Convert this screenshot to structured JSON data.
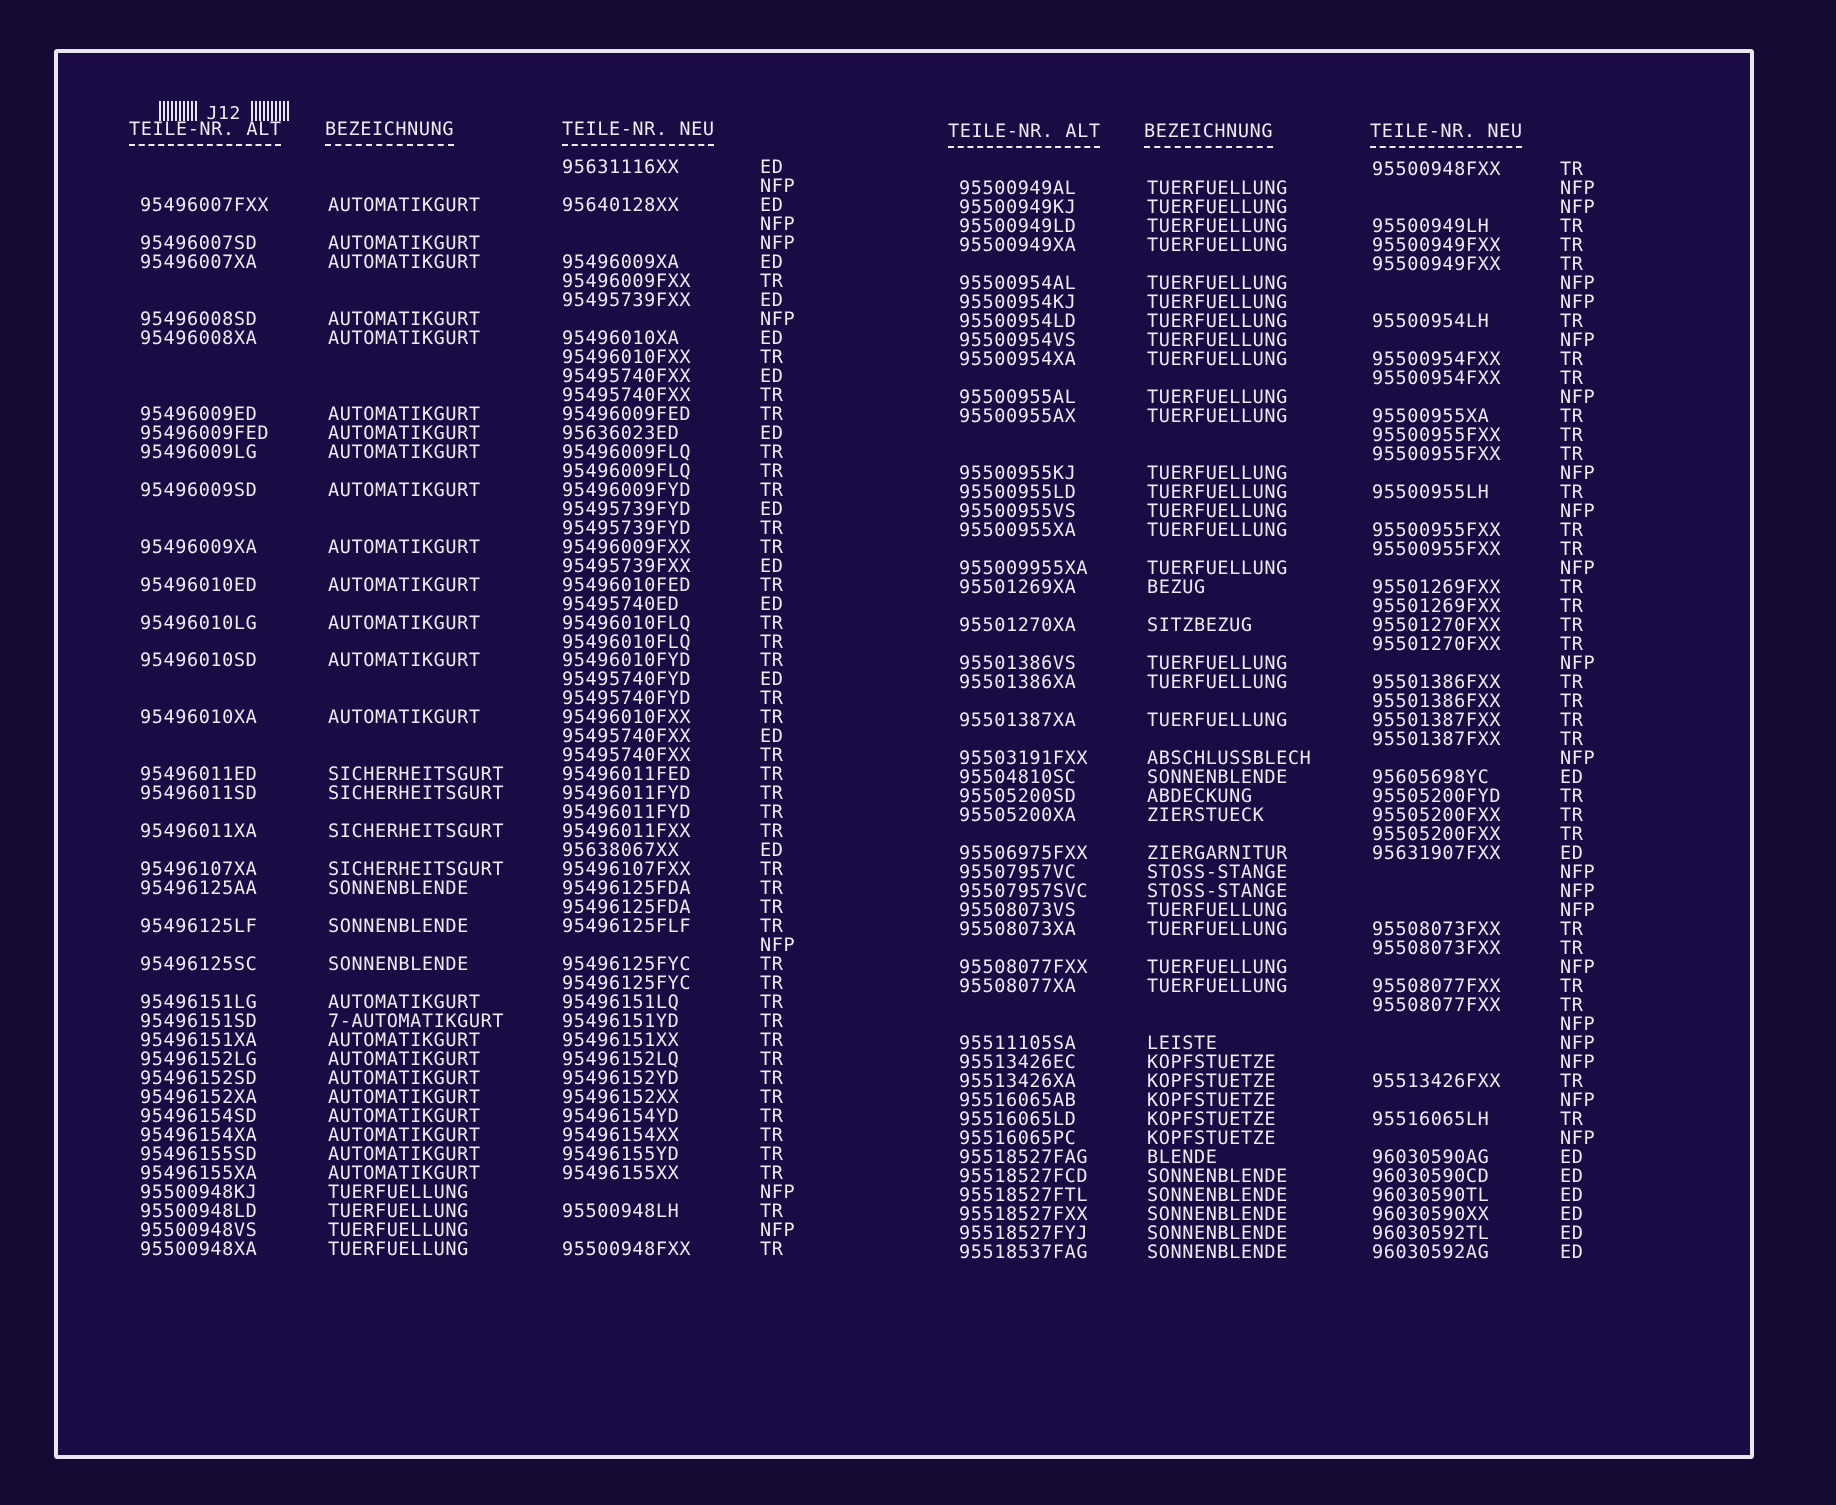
{
  "page_label": "J12",
  "headers": {
    "left": [
      "TEILE-NR. ALT",
      "BEZEICHNUNG",
      "TEILE-NR. NEU"
    ],
    "right": [
      "TEILE-NR. ALT",
      "BEZEICHNUNG",
      "TEILE-NR. NEU"
    ]
  },
  "rows_left": [
    [
      "",
      "",
      "95631116XX",
      "ED"
    ],
    [
      "",
      "",
      "",
      "NFP"
    ],
    [
      "95496007FXX",
      "AUTOMATIKGURT",
      "95640128XX",
      "ED"
    ],
    [
      "",
      "",
      "",
      "NFP"
    ],
    [
      "95496007SD",
      "AUTOMATIKGURT",
      "",
      "NFP"
    ],
    [
      "95496007XA",
      "AUTOMATIKGURT",
      "95496009XA",
      "ED"
    ],
    [
      "",
      "",
      "95496009FXX",
      "TR"
    ],
    [
      "",
      "",
      "95495739FXX",
      "ED"
    ],
    [
      "95496008SD",
      "AUTOMATIKGURT",
      "",
      "NFP"
    ],
    [
      "95496008XA",
      "AUTOMATIKGURT",
      "95496010XA",
      "ED"
    ],
    [
      "",
      "",
      "95496010FXX",
      "TR"
    ],
    [
      "",
      "",
      "95495740FXX",
      "ED"
    ],
    [
      "",
      "",
      "95495740FXX",
      "TR"
    ],
    [
      "95496009ED",
      "AUTOMATIKGURT",
      "95496009FED",
      "TR"
    ],
    [
      "95496009FED",
      "AUTOMATIKGURT",
      "95636023ED",
      "ED"
    ],
    [
      "95496009LG",
      "AUTOMATIKGURT",
      "95496009FLQ",
      "TR"
    ],
    [
      "",
      "",
      "95496009FLQ",
      "TR"
    ],
    [
      "95496009SD",
      "AUTOMATIKGURT",
      "95496009FYD",
      "TR"
    ],
    [
      "",
      "",
      "95495739FYD",
      "ED"
    ],
    [
      "",
      "",
      "95495739FYD",
      "TR"
    ],
    [
      "95496009XA",
      "AUTOMATIKGURT",
      "95496009FXX",
      "TR"
    ],
    [
      "",
      "",
      "95495739FXX",
      "ED"
    ],
    [
      "95496010ED",
      "AUTOMATIKGURT",
      "95496010FED",
      "TR"
    ],
    [
      "",
      "",
      "95495740ED",
      "ED"
    ],
    [
      "95496010LG",
      "AUTOMATIKGURT",
      "95496010FLQ",
      "TR"
    ],
    [
      "",
      "",
      "95496010FLQ",
      "TR"
    ],
    [
      "95496010SD",
      "AUTOMATIKGURT",
      "95496010FYD",
      "TR"
    ],
    [
      "",
      "",
      "95495740FYD",
      "ED"
    ],
    [
      "",
      "",
      "95495740FYD",
      "TR"
    ],
    [
      "95496010XA",
      "AUTOMATIKGURT",
      "95496010FXX",
      "TR"
    ],
    [
      "",
      "",
      "95495740FXX",
      "ED"
    ],
    [
      "",
      "",
      "95495740FXX",
      "TR"
    ],
    [
      "95496011ED",
      "SICHERHEITSGURT",
      "95496011FED",
      "TR"
    ],
    [
      "95496011SD",
      "SICHERHEITSGURT",
      "95496011FYD",
      "TR"
    ],
    [
      "",
      "",
      "95496011FYD",
      "TR"
    ],
    [
      "95496011XA",
      "SICHERHEITSGURT",
      "95496011FXX",
      "TR"
    ],
    [
      "",
      "",
      "95638067XX",
      "ED"
    ],
    [
      "95496107XA",
      "SICHERHEITSGURT",
      "95496107FXX",
      "TR"
    ],
    [
      "95496125AA",
      "SONNENBLENDE",
      "95496125FDA",
      "TR"
    ],
    [
      "",
      "",
      "95496125FDA",
      "TR"
    ],
    [
      "95496125LF",
      "SONNENBLENDE",
      "95496125FLF",
      "TR"
    ],
    [
      "",
      "",
      "",
      "NFP"
    ],
    [
      "95496125SC",
      "SONNENBLENDE",
      "95496125FYC",
      "TR"
    ],
    [
      "",
      "",
      "95496125FYC",
      "TR"
    ],
    [
      "95496151LG",
      "AUTOMATIKGURT",
      "95496151LQ",
      "TR"
    ],
    [
      "95496151SD",
      "7-AUTOMATIKGURT",
      "95496151YD",
      "TR"
    ],
    [
      "95496151XA",
      "AUTOMATIKGURT",
      "95496151XX",
      "TR"
    ],
    [
      "95496152LG",
      "AUTOMATIKGURT",
      "95496152LQ",
      "TR"
    ],
    [
      "95496152SD",
      "AUTOMATIKGURT",
      "95496152YD",
      "TR"
    ],
    [
      "95496152XA",
      "AUTOMATIKGURT",
      "95496152XX",
      "TR"
    ],
    [
      "95496154SD",
      "AUTOMATIKGURT",
      "95496154YD",
      "TR"
    ],
    [
      "95496154XA",
      "AUTOMATIKGURT",
      "95496154XX",
      "TR"
    ],
    [
      "95496155SD",
      "AUTOMATIKGURT",
      "95496155YD",
      "TR"
    ],
    [
      "95496155XA",
      "AUTOMATIKGURT",
      "95496155XX",
      "TR"
    ],
    [
      "95500948KJ",
      "TUERFUELLUNG",
      "",
      "NFP"
    ],
    [
      "95500948LD",
      "TUERFUELLUNG",
      "95500948LH",
      "TR"
    ],
    [
      "95500948VS",
      "TUERFUELLUNG",
      "",
      "NFP"
    ],
    [
      "95500948XA",
      "TUERFUELLUNG",
      "95500948FXX",
      "TR"
    ]
  ],
  "rows_right": [
    [
      "",
      "",
      "95500948FXX",
      "TR"
    ],
    [
      "95500949AL",
      "TUERFUELLUNG",
      "",
      "NFP"
    ],
    [
      "95500949KJ",
      "TUERFUELLUNG",
      "",
      "NFP"
    ],
    [
      "95500949LD",
      "TUERFUELLUNG",
      "95500949LH",
      "TR"
    ],
    [
      "95500949XA",
      "TUERFUELLUNG",
      "95500949FXX",
      "TR"
    ],
    [
      "",
      "",
      "95500949FXX",
      "TR"
    ],
    [
      "95500954AL",
      "TUERFUELLUNG",
      "",
      "NFP"
    ],
    [
      "95500954KJ",
      "TUERFUELLUNG",
      "",
      "NFP"
    ],
    [
      "95500954LD",
      "TUERFUELLUNG",
      "95500954LH",
      "TR"
    ],
    [
      "95500954VS",
      "TUERFUELLUNG",
      "",
      "NFP"
    ],
    [
      "95500954XA",
      "TUERFUELLUNG",
      "95500954FXX",
      "TR"
    ],
    [
      "",
      "",
      "95500954FXX",
      "TR"
    ],
    [
      "95500955AL",
      "TUERFUELLUNG",
      "",
      "NFP"
    ],
    [
      "95500955AX",
      "TUERFUELLUNG",
      "95500955XA",
      "TR"
    ],
    [
      "",
      "",
      "95500955FXX",
      "TR"
    ],
    [
      "",
      "",
      "95500955FXX",
      "TR"
    ],
    [
      "95500955KJ",
      "TUERFUELLUNG",
      "",
      "NFP"
    ],
    [
      "95500955LD",
      "TUERFUELLUNG",
      "95500955LH",
      "TR"
    ],
    [
      "95500955VS",
      "TUERFUELLUNG",
      "",
      "NFP"
    ],
    [
      "95500955XA",
      "TUERFUELLUNG",
      "95500955FXX",
      "TR"
    ],
    [
      "",
      "",
      "95500955FXX",
      "TR"
    ],
    [
      "955009955XA",
      "TUERFUELLUNG",
      "",
      "NFP"
    ],
    [
      "95501269XA",
      "BEZUG",
      "95501269FXX",
      "TR"
    ],
    [
      "",
      "",
      "95501269FXX",
      "TR"
    ],
    [
      "95501270XA",
      "SITZBEZUG",
      "95501270FXX",
      "TR"
    ],
    [
      "",
      "",
      "95501270FXX",
      "TR"
    ],
    [
      "95501386VS",
      "TUERFUELLUNG",
      "",
      "NFP"
    ],
    [
      "95501386XA",
      "TUERFUELLUNG",
      "95501386FXX",
      "TR"
    ],
    [
      "",
      "",
      "95501386FXX",
      "TR"
    ],
    [
      "95501387XA",
      "TUERFUELLUNG",
      "95501387FXX",
      "TR"
    ],
    [
      "",
      "",
      "95501387FXX",
      "TR"
    ],
    [
      "95503191FXX",
      "ABSCHLUSSBLECH",
      "",
      "NFP"
    ],
    [
      "95504810SC",
      "SONNENBLENDE",
      "95605698YC",
      "ED"
    ],
    [
      "95505200SD",
      "ABDECKUNG",
      "95505200FYD",
      "TR"
    ],
    [
      "95505200XA",
      "ZIERSTUECK",
      "95505200FXX",
      "TR"
    ],
    [
      "",
      "",
      "95505200FXX",
      "TR"
    ],
    [
      "95506975FXX",
      "ZIERGARNITUR",
      "95631907FXX",
      "ED"
    ],
    [
      "95507957VC",
      "STOSS-STANGE",
      "",
      "NFP"
    ],
    [
      "95507957SVC",
      "STOSS-STANGE",
      "",
      "NFP"
    ],
    [
      "95508073VS",
      "TUERFUELLUNG",
      "",
      "NFP"
    ],
    [
      "95508073XA",
      "TUERFUELLUNG",
      "95508073FXX",
      "TR"
    ],
    [
      "",
      "",
      "95508073FXX",
      "TR"
    ],
    [
      "95508077FXX",
      "TUERFUELLUNG",
      "",
      "NFP"
    ],
    [
      "95508077XA",
      "TUERFUELLUNG",
      "95508077FXX",
      "TR"
    ],
    [
      "",
      "",
      "95508077FXX",
      "TR"
    ],
    [
      "",
      "",
      "",
      "NFP"
    ],
    [
      "95511105SA",
      "LEISTE",
      "",
      "NFP"
    ],
    [
      "95513426EC",
      "KOPFSTUETZE",
      "",
      "NFP"
    ],
    [
      "95513426XA",
      "KOPFSTUETZE",
      "95513426FXX",
      "TR"
    ],
    [
      "95516065AB",
      "KOPFSTUETZE",
      "",
      "NFP"
    ],
    [
      "95516065LD",
      "KOPFSTUETZE",
      "95516065LH",
      "TR"
    ],
    [
      "95516065PC",
      "KOPFSTUETZE",
      "",
      "NFP"
    ],
    [
      "95518527FAG",
      "BLENDE",
      "96030590AG",
      "ED"
    ],
    [
      "95518527FCD",
      "SONNENBLENDE",
      "96030590CD",
      "ED"
    ],
    [
      "95518527FTL",
      "SONNENBLENDE",
      "96030590TL",
      "ED"
    ],
    [
      "95518527FXX",
      "SONNENBLENDE",
      "96030590XX",
      "ED"
    ],
    [
      "95518527FYJ",
      "SONNENBLENDE",
      "96030592TL",
      "ED"
    ],
    [
      "95518537FAG",
      "SONNENBLENDE",
      "96030592AG",
      "ED"
    ]
  ]
}
